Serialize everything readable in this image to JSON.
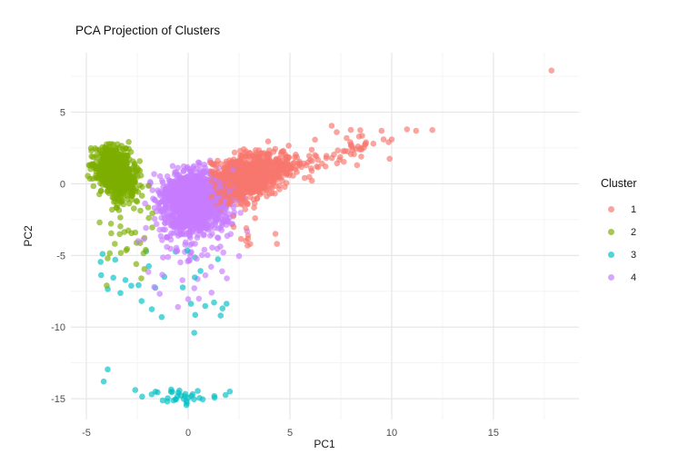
{
  "chart_data": {
    "type": "scatter",
    "title": "PCA Projection of Clusters",
    "xlabel": "PC1",
    "ylabel": "PC2",
    "xlim": [
      -5.76,
      19.2
    ],
    "ylim": [
      -16.45,
      9.15
    ],
    "x_ticks": [
      -5,
      0,
      5,
      10,
      15
    ],
    "y_ticks": [
      5,
      0,
      -5,
      -10,
      -15
    ],
    "x_minor_ticks": [
      -2.5,
      2.5,
      7.5,
      12.5,
      17.5
    ],
    "y_minor_ticks": [
      7.5,
      2.5,
      -2.5,
      -7.5,
      -12.5
    ],
    "grid": true,
    "background_color": "#FFFFFF",
    "grid_major_color": "#E4E4E4",
    "grid_minor_color": "#F1F1F1",
    "tick_label_color": "#4D4D4D",
    "point_radius": 3.3,
    "point_opacity": 0.66,
    "seed": 42,
    "legend": {
      "title": "Cluster",
      "position": "right",
      "entries": [
        {
          "label": "1",
          "color": "#F8766D"
        },
        {
          "label": "2",
          "color": "#7CAE00"
        },
        {
          "label": "3",
          "color": "#00BFC4"
        },
        {
          "label": "4",
          "color": "#C77CFF"
        }
      ]
    },
    "clusters": [
      {
        "label": "1",
        "color": "#F8766D",
        "summary": "dense blob centered near (2.9, 0.4) trailing diagonally up-right to x=12, one extreme outlier at (17.9, 7.9)",
        "gen": [
          {
            "type": "gaussian",
            "n": 1000,
            "cx": 2.85,
            "cy": 0.42,
            "sx": 0.95,
            "sy": 0.75,
            "slope": 0.35,
            "clipx": [
              1.0,
              6.2
            ],
            "clipy": [
              -2.4,
              3.1
            ]
          },
          {
            "type": "band",
            "n": 75,
            "x0": 4.6,
            "span": 4.2,
            "pow": 1.35,
            "slope": 0.42,
            "intercept": -0.9,
            "noise": 0.6,
            "clipy": [
              0.2,
              4.0
            ]
          },
          {
            "type": "uniform",
            "n": 9,
            "xr": [
              1.9,
              4.7
            ],
            "yr": [
              -2.3,
              -4.4
            ]
          }
        ],
        "points": [
          [
            17.85,
            7.9
          ],
          [
            9.5,
            3.7
          ],
          [
            9.1,
            2.8
          ],
          [
            9.6,
            3.1
          ],
          [
            9.85,
            2.9
          ],
          [
            10.0,
            3.1
          ],
          [
            10.75,
            3.8
          ],
          [
            11.2,
            3.7
          ],
          [
            12.0,
            3.75
          ],
          [
            9.9,
            1.75
          ],
          [
            8.5,
            2.5
          ],
          [
            8.5,
            1.9
          ],
          [
            7.05,
            4.05
          ],
          [
            7.3,
            3.6
          ],
          [
            8.3,
            1.3
          ],
          [
            8.4,
            3.3
          ],
          [
            2.6,
            -3.85
          ],
          [
            3.05,
            -4.2
          ]
        ]
      },
      {
        "label": "2",
        "color": "#7CAE00",
        "summary": "dense vertical blob centered near (-3.5, 0.5) with sparse tail down to y=-7",
        "gen": [
          {
            "type": "gaussian",
            "n": 620,
            "cx": -3.5,
            "cy": 0.55,
            "sx": 0.48,
            "sy": 0.78,
            "slope": -0.5,
            "clipx": [
              -4.95,
              -1.75
            ],
            "clipy": [
              -3.2,
              2.95
            ]
          },
          {
            "type": "gaussian",
            "n": 140,
            "cx": -3.8,
            "cy": 1.6,
            "sx": 0.38,
            "sy": 0.6,
            "clipx": [
              -4.9,
              -2.9
            ],
            "clipy": [
              -0.5,
              2.95
            ]
          },
          {
            "type": "uniform",
            "n": 24,
            "xr": [
              -3.85,
              -1.7
            ],
            "yr": [
              -1.6,
              -4.9
            ]
          }
        ],
        "points": [
          [
            -3.85,
            -4.85
          ],
          [
            -3.95,
            -5.2
          ],
          [
            -4.0,
            -7.1
          ],
          [
            -2.55,
            -5.6
          ],
          [
            -2.15,
            -5.95
          ],
          [
            -4.35,
            -2.7
          ],
          [
            -3.0,
            -4.55
          ],
          [
            -2.6,
            -3.4
          ],
          [
            -2.3,
            -6.6
          ]
        ]
      },
      {
        "label": "3",
        "color": "#00BFC4",
        "summary": "sparse scatter between y=-4.6 and y=-10.4, plus tight horizontal band near y=-14.9 (x -2.7..2) and two isolated points near (-4, -13)",
        "gen": [
          {
            "type": "uniform",
            "n": 26,
            "xr": [
              -4.35,
              2.3
            ],
            "yr": [
              -4.6,
              -8.8
            ]
          },
          {
            "type": "gaussian",
            "n": 33,
            "cx": -0.35,
            "cy": -14.85,
            "sx": 0.9,
            "sy": 0.28,
            "clipx": [
              -2.7,
              1.95
            ],
            "clipy": [
              -15.6,
              -14.15
            ]
          }
        ],
        "points": [
          [
            -3.95,
            -12.95
          ],
          [
            -4.15,
            -13.8
          ],
          [
            -1.3,
            -9.3
          ],
          [
            0.35,
            -9.15
          ],
          [
            1.6,
            -9.2
          ],
          [
            -4.2,
            -4.9
          ],
          [
            -4.3,
            -5.45
          ],
          [
            0.3,
            -10.4
          ],
          [
            2.05,
            -14.5
          ],
          [
            -2.6,
            -14.4
          ]
        ]
      },
      {
        "label": "4",
        "color": "#C77CFF",
        "summary": "dense round blob centered near (0.3, -1.2) with sparse tail down to y=-8.6",
        "gen": [
          {
            "type": "gaussian",
            "n": 1300,
            "cx": 0.3,
            "cy": -1.15,
            "sx": 0.8,
            "sy": 1.0,
            "clipx": [
              -2.3,
              3.0
            ],
            "clipy": [
              -4.4,
              1.65
            ]
          },
          {
            "type": "gaussian",
            "n": 110,
            "cx": 0.1,
            "cy": -2.6,
            "sx": 0.95,
            "sy": 1.1,
            "clipx": [
              -2.2,
              2.6
            ],
            "clipy": [
              -6.2,
              0.0
            ]
          },
          {
            "type": "uniform",
            "n": 20,
            "xr": [
              -1.7,
              2.1
            ],
            "yr": [
              -4.4,
              -8.1
            ]
          }
        ],
        "points": [
          [
            -1.95,
            -6.15
          ],
          [
            2.5,
            -5.05
          ],
          [
            0.0,
            -8.05
          ],
          [
            1.15,
            -7.6
          ],
          [
            -0.5,
            -8.6
          ],
          [
            2.9,
            -3.3
          ],
          [
            -2.45,
            -4.0
          ],
          [
            1.9,
            -6.6
          ]
        ]
      }
    ]
  }
}
